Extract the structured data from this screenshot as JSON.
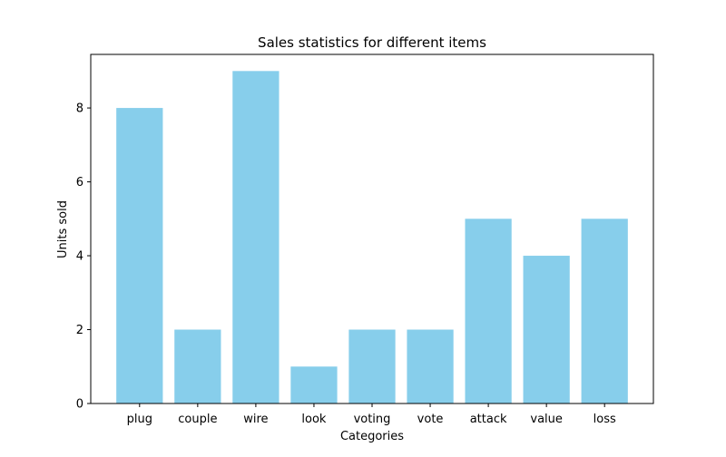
{
  "chart_data": {
    "type": "bar",
    "title": "Sales statistics for different items",
    "xlabel": "Categories",
    "ylabel": "Units sold",
    "categories": [
      "plug",
      "couple",
      "wire",
      "look",
      "voting",
      "vote",
      "attack",
      "value",
      "loss"
    ],
    "values": [
      8,
      2,
      9,
      1,
      2,
      2,
      5,
      4,
      5
    ],
    "ylim": [
      0,
      9.45
    ],
    "yticks": [
      0,
      2,
      4,
      6,
      8
    ],
    "bar_color": "#87CEEB",
    "grid": false,
    "legend": "none"
  }
}
